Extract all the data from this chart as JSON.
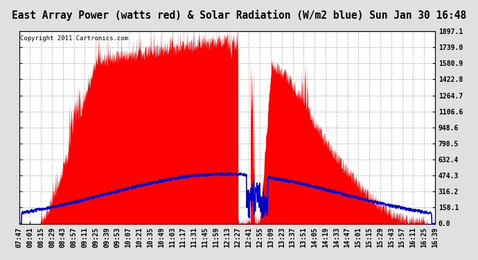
{
  "title": "East Array Power (watts red) & Solar Radiation (W/m2 blue) Sun Jan 30 16:48",
  "copyright": "Copyright 2011 Cartronics.com",
  "ymax": 1897.1,
  "ymin": 0.0,
  "yticks": [
    0.0,
    158.1,
    316.2,
    474.3,
    632.4,
    790.5,
    948.6,
    1106.6,
    1264.7,
    1422.8,
    1580.9,
    1739.0,
    1897.1
  ],
  "background_color": "#e0e0e0",
  "plot_bg_color": "#ffffff",
  "grid_color": "#aaaaaa",
  "red_color": "#ff0000",
  "blue_color": "#0000cc",
  "xtick_labels": [
    "07:47",
    "08:01",
    "08:15",
    "08:29",
    "08:43",
    "08:57",
    "09:11",
    "09:25",
    "09:39",
    "09:53",
    "10:07",
    "10:21",
    "10:35",
    "10:49",
    "11:03",
    "11:17",
    "11:31",
    "11:45",
    "11:59",
    "12:13",
    "12:27",
    "12:41",
    "12:55",
    "13:09",
    "13:23",
    "13:37",
    "13:51",
    "14:05",
    "14:19",
    "14:33",
    "14:47",
    "15:01",
    "15:15",
    "15:29",
    "15:43",
    "15:57",
    "16:11",
    "16:25",
    "16:39"
  ],
  "title_fontsize": 10.5,
  "tick_fontsize": 7,
  "copyright_fontsize": 6.5
}
